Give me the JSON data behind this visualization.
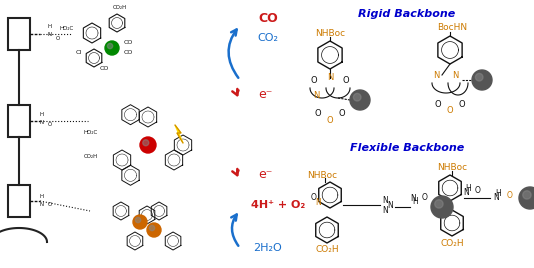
{
  "background": "#ffffff",
  "rigid_backbone_title": "Rigid Backbone",
  "flexible_backbone_title": "Flexible Backbone",
  "rigid_title_color": "#0000cc",
  "flexible_title_color": "#0000cc",
  "co_label": "CO",
  "co2_label": "CO₂",
  "e_minus_1": "e⁻",
  "e_minus_2": "e⁻",
  "water_label": "2H₂O",
  "o2_label": "4H⁺ + O₂",
  "arrow_blue": "#1a6fcc",
  "arrow_red": "#cc1a1a",
  "label_red": "#cc1a1a",
  "label_blue": "#1a6fcc",
  "label_orange": "#cc7a00",
  "nhboc_color": "#cc7a00",
  "co2h_color": "#cc7a00",
  "struct_black": "#111111",
  "electrode_color": "#222222",
  "ru_color": "#cc0000",
  "re_color": "#008800",
  "sphere_color": "#555555",
  "lightning_yellow": "#ffdd00",
  "lightning_outline": "#cc8800"
}
